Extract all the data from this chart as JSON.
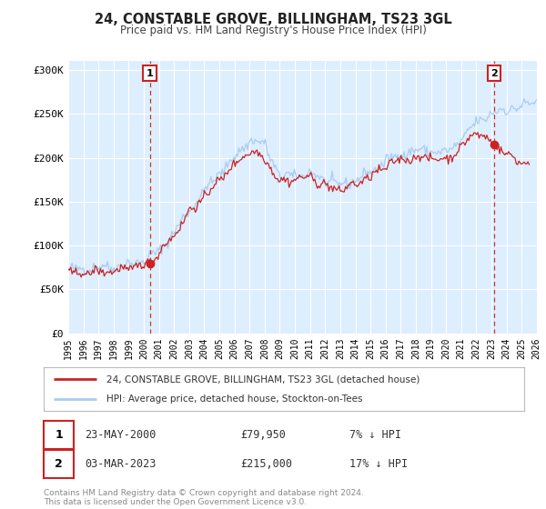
{
  "title": "24, CONSTABLE GROVE, BILLINGHAM, TS23 3GL",
  "subtitle": "Price paid vs. HM Land Registry's House Price Index (HPI)",
  "legend_line1": "24, CONSTABLE GROVE, BILLINGHAM, TS23 3GL (detached house)",
  "legend_line2": "HPI: Average price, detached house, Stockton-on-Tees",
  "transaction1_date": "23-MAY-2000",
  "transaction1_price": "£79,950",
  "transaction1_hpi": "7% ↓ HPI",
  "transaction2_date": "03-MAR-2023",
  "transaction2_price": "£215,000",
  "transaction2_hpi": "17% ↓ HPI",
  "footer1": "Contains HM Land Registry data © Crown copyright and database right 2024.",
  "footer2": "This data is licensed under the Open Government Licence v3.0.",
  "xlim": [
    1995,
    2026
  ],
  "ylim": [
    0,
    310000
  ],
  "yticks": [
    0,
    50000,
    100000,
    150000,
    200000,
    250000,
    300000
  ],
  "ytick_labels": [
    "£0",
    "£50K",
    "£100K",
    "£150K",
    "£200K",
    "£250K",
    "£300K"
  ],
  "xticks": [
    1995,
    1996,
    1997,
    1998,
    1999,
    2000,
    2001,
    2002,
    2003,
    2004,
    2005,
    2006,
    2007,
    2008,
    2009,
    2010,
    2011,
    2012,
    2013,
    2014,
    2015,
    2016,
    2017,
    2018,
    2019,
    2020,
    2021,
    2022,
    2023,
    2024,
    2025,
    2026
  ],
  "transaction1_x": 2000.39,
  "transaction1_y": 79950,
  "transaction2_x": 2023.17,
  "transaction2_y": 215000,
  "red_color": "#cc2222",
  "blue_color": "#aaccee",
  "marker_color": "#cc2222",
  "vline_color": "#cc3333",
  "plot_bg": "#ddeeff",
  "grid_color": "#ffffff",
  "annotation_box_color": "#cc2222",
  "fig_bg": "#ffffff"
}
